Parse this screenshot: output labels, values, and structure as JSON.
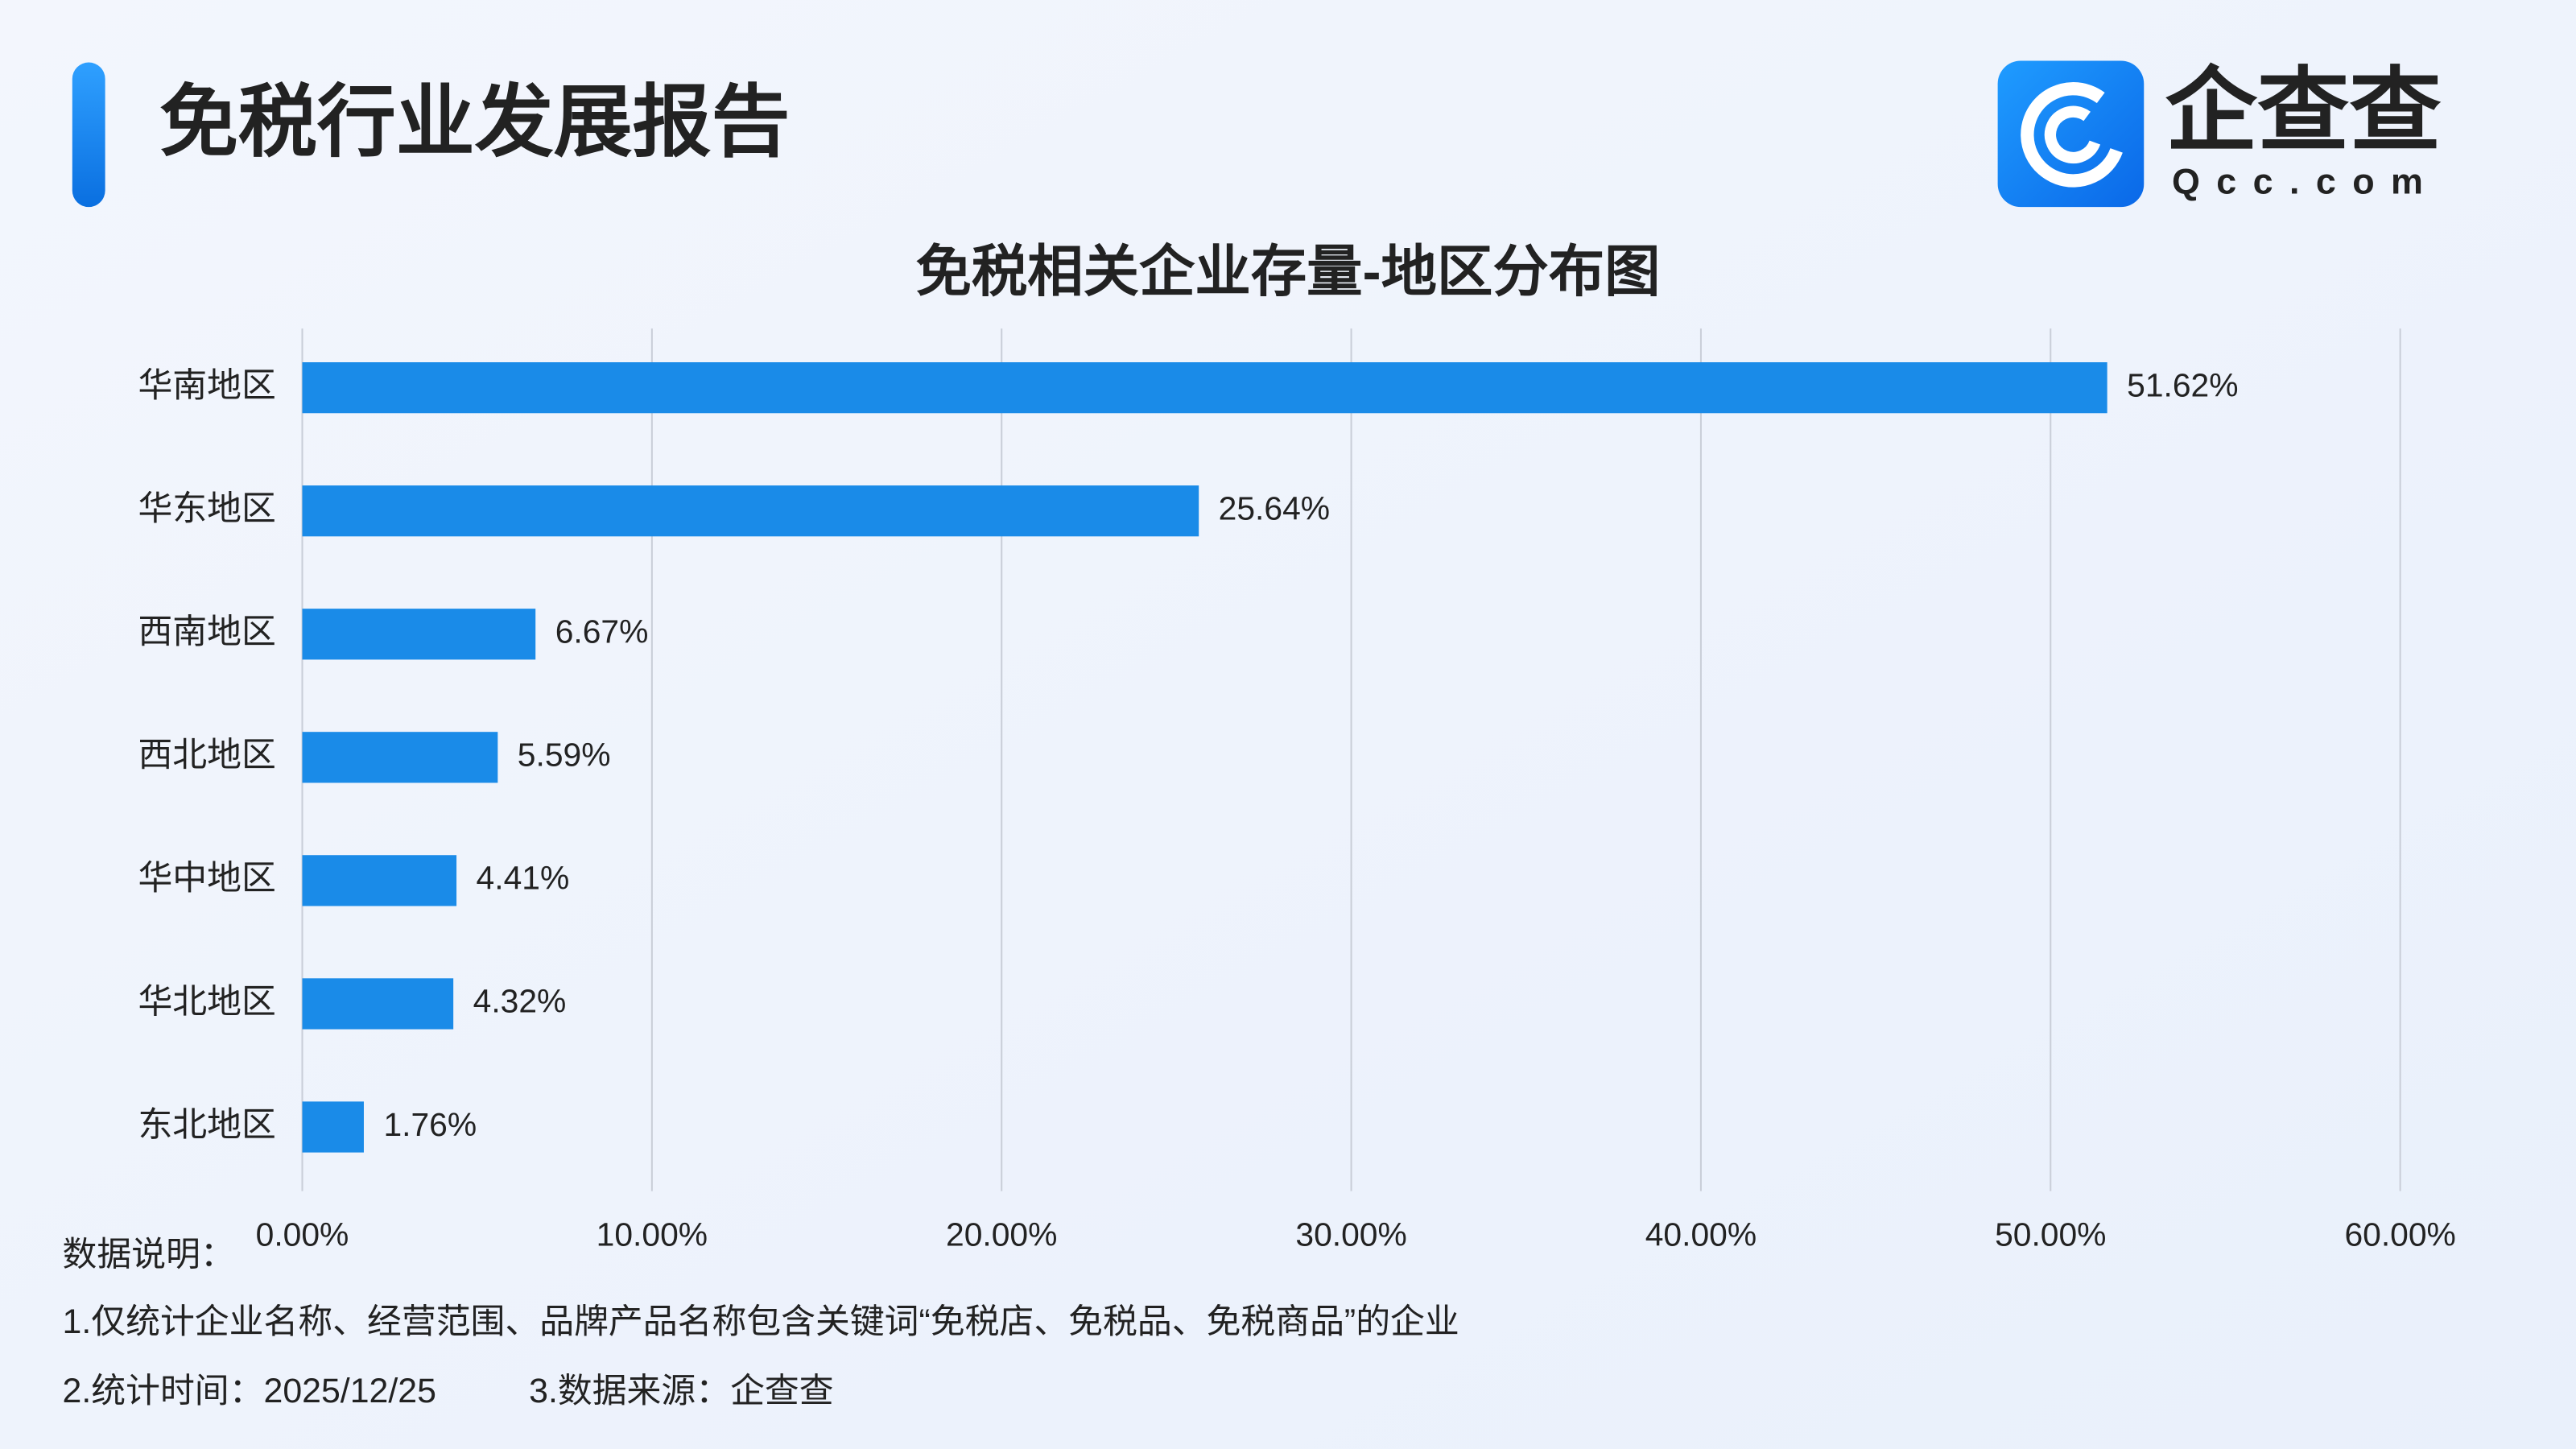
{
  "header": {
    "title": "免税行业发展报告",
    "logo_text": "企查查",
    "logo_domain": "Qcc.com"
  },
  "chart_data": {
    "type": "bar",
    "orientation": "horizontal",
    "title": "免税相关企业存量-地区分布图",
    "categories": [
      "华南地区",
      "华东地区",
      "西南地区",
      "西北地区",
      "华中地区",
      "华北地区",
      "东北地区"
    ],
    "values": [
      51.62,
      25.64,
      6.67,
      5.59,
      4.41,
      4.32,
      1.76
    ],
    "value_labels": [
      "51.62%",
      "25.64%",
      "6.67%",
      "5.59%",
      "4.41%",
      "4.32%",
      "1.76%"
    ],
    "color": "#1a8be8",
    "xlim": [
      0,
      60
    ],
    "xticks": [
      {
        "value": 0,
        "label": "0.00%"
      },
      {
        "value": 10,
        "label": "10.00%"
      },
      {
        "value": 20,
        "label": "20.00%"
      },
      {
        "value": 30,
        "label": "30.00%"
      },
      {
        "value": 40,
        "label": "40.00%"
      },
      {
        "value": 50,
        "label": "50.00%"
      },
      {
        "value": 60,
        "label": "60.00%"
      }
    ],
    "grid": true
  },
  "notes": [
    "数据说明：",
    "1.仅统计企业名称、经营范围、品牌产品名称包含关键词“免税店、免税品、免税商品”的企业",
    "2.统计时间：2025/12/25",
    "3.数据来源：企查查"
  ]
}
